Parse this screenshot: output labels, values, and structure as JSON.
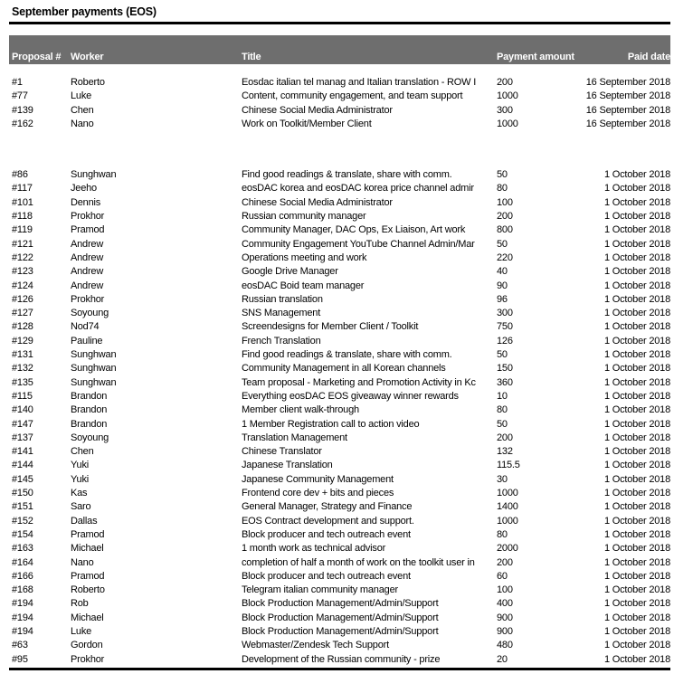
{
  "report": {
    "title": "September payments (EOS)"
  },
  "colors": {
    "header_bg": "#6e6e6e",
    "header_text": "#ffffff",
    "rule": "#000000"
  },
  "table": {
    "headers": {
      "proposal": "Proposal #",
      "worker": "Worker",
      "title": "Title",
      "amount": "Payment amount",
      "date": "Paid date"
    },
    "groups": [
      {
        "rows": [
          {
            "proposal": "#1",
            "worker": "Roberto",
            "title": "Eosdac italian tel manag and Italian translation - ROW I",
            "amount": "200",
            "date": "16 September 2018"
          },
          {
            "proposal": "#77",
            "worker": "Luke",
            "title": "Content, community engagement, and team support",
            "amount": "1000",
            "date": "16 September 2018"
          },
          {
            "proposal": "#139",
            "worker": "Chen",
            "title": "Chinese Social Media Administrator",
            "amount": "300",
            "date": "16 September 2018"
          },
          {
            "proposal": "#162",
            "worker": "Nano",
            "title": "Work on Toolkit/Member Client",
            "amount": "1000",
            "date": "16 September 2018"
          }
        ]
      },
      {
        "rows": [
          {
            "proposal": "#86",
            "worker": "Sunghwan",
            "title": "Find good readings & translate, share with comm.",
            "amount": "50",
            "date": "1 October 2018"
          },
          {
            "proposal": "#117",
            "worker": "Jeeho",
            "title": "eosDAC korea and eosDAC korea price channel admir",
            "amount": "80",
            "date": "1 October 2018"
          },
          {
            "proposal": "#101",
            "worker": "Dennis",
            "title": "Chinese Social Media Administrator",
            "amount": "100",
            "date": "1 October 2018"
          },
          {
            "proposal": "#118",
            "worker": "Prokhor",
            "title": "Russian community manager",
            "amount": "200",
            "date": "1 October 2018"
          },
          {
            "proposal": "#119",
            "worker": "Pramod",
            "title": "Community Manager, DAC Ops, Ex Liaison, Art work",
            "amount": "800",
            "date": "1 October 2018"
          },
          {
            "proposal": "#121",
            "worker": "Andrew",
            "title": "Community Engagement YouTube Channel Admin/Mar",
            "amount": "50",
            "date": "1 October 2018"
          },
          {
            "proposal": "#122",
            "worker": "Andrew",
            "title": "Operations meeting and work",
            "amount": "220",
            "date": "1 October 2018"
          },
          {
            "proposal": "#123",
            "worker": "Andrew",
            "title": "Google Drive Manager",
            "amount": "40",
            "date": "1 October 2018"
          },
          {
            "proposal": "#124",
            "worker": "Andrew",
            "title": "eosDAC Boid team manager",
            "amount": "90",
            "date": "1 October 2018"
          },
          {
            "proposal": "#126",
            "worker": "Prokhor",
            "title": "Russian translation",
            "amount": "96",
            "date": "1 October 2018"
          },
          {
            "proposal": "#127",
            "worker": "Soyoung",
            "title": "SNS Management",
            "amount": "300",
            "date": "1 October 2018"
          },
          {
            "proposal": "#128",
            "worker": "Nod74",
            "title": "Screendesigns for Member Client / Toolkit",
            "amount": "750",
            "date": "1 October 2018"
          },
          {
            "proposal": "#129",
            "worker": "Pauline",
            "title": "French Translation",
            "amount": "126",
            "date": "1 October 2018"
          },
          {
            "proposal": "#131",
            "worker": "Sunghwan",
            "title": "Find good readings & translate, share with comm.",
            "amount": "50",
            "date": "1 October 2018"
          },
          {
            "proposal": "#132",
            "worker": "Sunghwan",
            "title": "Community Management in all Korean channels",
            "amount": "150",
            "date": "1 October 2018"
          },
          {
            "proposal": "#135",
            "worker": "Sunghwan",
            "title": "Team proposal - Marketing and Promotion Activity in Kc",
            "amount": "360",
            "date": "1 October 2018"
          },
          {
            "proposal": "#115",
            "worker": "Brandon",
            "title": "Everything eosDAC EOS giveaway winner rewards",
            "amount": "10",
            "date": "1 October 2018"
          },
          {
            "proposal": "#140",
            "worker": "Brandon",
            "title": "Member client walk-through",
            "amount": "80",
            "date": "1 October 2018"
          },
          {
            "proposal": "#147",
            "worker": "Brandon",
            "title": "1 Member Registration call to action video",
            "amount": "50",
            "date": "1 October 2018"
          },
          {
            "proposal": "#137",
            "worker": "Soyoung",
            "title": "Translation Management",
            "amount": "200",
            "date": "1 October 2018"
          },
          {
            "proposal": "#141",
            "worker": "Chen",
            "title": "Chinese Translator",
            "amount": "132",
            "date": "1 October 2018"
          },
          {
            "proposal": "#144",
            "worker": "Yuki",
            "title": "Japanese Translation",
            "amount": "115.5",
            "date": "1 October 2018"
          },
          {
            "proposal": "#145",
            "worker": "Yuki",
            "title": "Japanese Community Management",
            "amount": "30",
            "date": "1 October 2018"
          },
          {
            "proposal": "#150",
            "worker": "Kas",
            "title": "Frontend core dev + bits and pieces",
            "amount": "1000",
            "date": "1 October 2018"
          },
          {
            "proposal": "#151",
            "worker": "Saro",
            "title": "General Manager, Strategy and Finance",
            "amount": "1400",
            "date": "1 October 2018"
          },
          {
            "proposal": "#152",
            "worker": "Dallas",
            "title": "EOS Contract development and support.",
            "amount": "1000",
            "date": "1 October 2018"
          },
          {
            "proposal": "#154",
            "worker": "Pramod",
            "title": "Block producer and tech outreach event",
            "amount": "80",
            "date": "1 October 2018"
          },
          {
            "proposal": "#163",
            "worker": "Michael",
            "title": "1 month work as technical advisor",
            "amount": "2000",
            "date": "1 October 2018"
          },
          {
            "proposal": "#164",
            "worker": "Nano",
            "title": "completion of half a month of work on the toolkit user in",
            "amount": "200",
            "date": "1 October 2018"
          },
          {
            "proposal": "#166",
            "worker": "Pramod",
            "title": "Block producer and tech outreach event",
            "amount": "60",
            "date": "1 October 2018"
          },
          {
            "proposal": "#168",
            "worker": "Roberto",
            "title": "Telegram italian community manager",
            "amount": "100",
            "date": "1 October 2018"
          },
          {
            "proposal": "#194",
            "worker": "Rob",
            "title": "Block Production Management/Admin/Support",
            "amount": "400",
            "date": "1 October 2018"
          },
          {
            "proposal": "#194",
            "worker": "Michael",
            "title": "Block Production Management/Admin/Support",
            "amount": "900",
            "date": "1 October 2018"
          },
          {
            "proposal": "#194",
            "worker": "Luke",
            "title": "Block Production Management/Admin/Support",
            "amount": "900",
            "date": "1 October 2018"
          },
          {
            "proposal": "#63",
            "worker": "Gordon",
            "title": "Webmaster/Zendesk Tech Support",
            "amount": "480",
            "date": "1 October 2018"
          },
          {
            "proposal": "#95",
            "worker": "Prokhor",
            "title": "Development of the Russian community - prize",
            "amount": "20",
            "date": "1 October 2018"
          }
        ]
      }
    ]
  }
}
